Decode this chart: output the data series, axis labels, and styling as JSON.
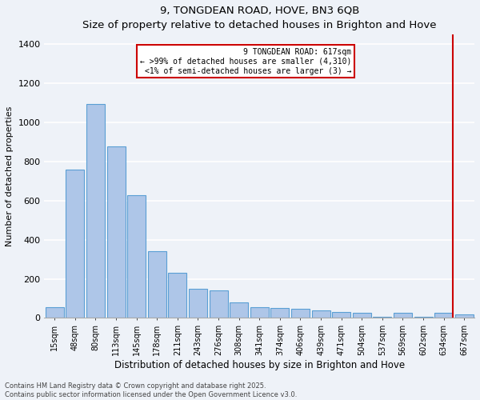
{
  "title": "9, TONGDEAN ROAD, HOVE, BN3 6QB",
  "subtitle": "Size of property relative to detached houses in Brighton and Hove",
  "xlabel": "Distribution of detached houses by size in Brighton and Hove",
  "ylabel": "Number of detached properties",
  "categories": [
    "15sqm",
    "48sqm",
    "80sqm",
    "113sqm",
    "145sqm",
    "178sqm",
    "211sqm",
    "243sqm",
    "276sqm",
    "308sqm",
    "341sqm",
    "374sqm",
    "406sqm",
    "439sqm",
    "471sqm",
    "504sqm",
    "537sqm",
    "569sqm",
    "602sqm",
    "634sqm",
    "667sqm"
  ],
  "values": [
    55,
    760,
    1095,
    880,
    630,
    340,
    230,
    150,
    140,
    80,
    55,
    50,
    45,
    40,
    30,
    25,
    8,
    25,
    5,
    25,
    20
  ],
  "bar_color": "#aec6e8",
  "bar_edge_color": "#5a9fd4",
  "vline_color": "#cc0000",
  "vline_x_index": 19.45,
  "annotation_text": "9 TONGDEAN ROAD: 617sqm\n← >99% of detached houses are smaller (4,310)\n<1% of semi-detached houses are larger (3) →",
  "annotation_box_color": "#cc0000",
  "ylim": [
    0,
    1450
  ],
  "yticks": [
    0,
    200,
    400,
    600,
    800,
    1000,
    1200,
    1400
  ],
  "footer1": "Contains HM Land Registry data © Crown copyright and database right 2025.",
  "footer2": "Contains public sector information licensed under the Open Government Licence v3.0.",
  "background_color": "#eef2f8",
  "grid_color": "#ffffff"
}
